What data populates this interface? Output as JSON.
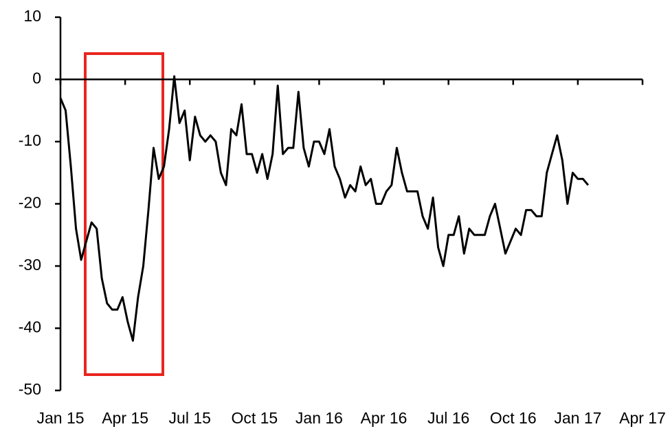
{
  "chart_data": {
    "type": "line",
    "color": "#000000",
    "x": [
      2015,
      2015.02,
      2015.04,
      2015.06,
      2015.08,
      2015.1,
      2015.12,
      2015.14,
      2015.16,
      2015.18,
      2015.2,
      2015.22,
      2015.24,
      2015.26,
      2015.28,
      2015.3,
      2015.32,
      2015.34,
      2015.36,
      2015.38,
      2015.4,
      2015.42,
      2015.44,
      2015.46,
      2015.48,
      2015.5,
      2015.52,
      2015.54,
      2015.56,
      2015.58,
      2015.6,
      2015.62,
      2015.64,
      2015.66,
      2015.68,
      2015.7,
      2015.72,
      2015.74,
      2015.76,
      2015.78,
      2015.8,
      2015.82,
      2015.84,
      2015.86,
      2015.88,
      2015.9,
      2015.92,
      2015.94,
      2015.96,
      2015.98,
      2016,
      2016.02,
      2016.04,
      2016.06,
      2016.08,
      2016.1,
      2016.12,
      2016.14,
      2016.16,
      2016.18,
      2016.2,
      2016.22,
      2016.24,
      2016.26,
      2016.28,
      2016.3,
      2016.32,
      2016.34,
      2016.36,
      2016.38,
      2016.4,
      2016.42,
      2016.44,
      2016.46,
      2016.48,
      2016.5,
      2016.52,
      2016.54,
      2016.56,
      2016.58,
      2016.6,
      2016.62,
      2016.64,
      2016.66,
      2016.68,
      2016.7,
      2016.72,
      2016.74,
      2016.76,
      2016.78,
      2016.8,
      2016.82,
      2016.84,
      2016.86,
      2016.88,
      2016.9,
      2016.92,
      2016.94,
      2016.96,
      2016.98,
      2017,
      2017.02,
      2017.04
    ],
    "values": [
      -3,
      -5,
      -14,
      -24,
      -29,
      -26,
      -23,
      -24,
      -32,
      -36,
      -37,
      -37,
      -35,
      -39,
      -42,
      -35,
      -30,
      -21,
      -11,
      -16,
      -14,
      -8,
      0.5,
      -7,
      -5,
      -13,
      -6,
      -9,
      -10,
      -9,
      -10,
      -15,
      -17,
      -8,
      -9,
      -4,
      -12,
      -12,
      -15,
      -12,
      -16,
      -12,
      -1,
      -12,
      -11,
      -11,
      -2,
      -11,
      -14,
      -10,
      -10,
      -12,
      -8,
      -14,
      -16,
      -19,
      -17,
      -18,
      -14,
      -17,
      -16,
      -20,
      -20,
      -18,
      -17,
      -11,
      -15,
      -18,
      -18,
      -18,
      -22,
      -24,
      -19,
      -27,
      -30,
      -25,
      -25,
      -22,
      -28,
      -24,
      -25,
      -25,
      -25,
      -22,
      -20,
      -24,
      -28,
      -26,
      -24,
      -25,
      -21,
      -21,
      -22,
      -22,
      -15,
      -12,
      -9,
      -13,
      -20,
      -15,
      -16,
      -16,
      -17
    ],
    "xlim": [
      2015,
      2017.25
    ],
    "xticks": [
      {
        "value": 2015,
        "label": "Jan 15"
      },
      {
        "value": 2015.25,
        "label": "Apr 15"
      },
      {
        "value": 2015.5,
        "label": "Jul 15"
      },
      {
        "value": 2015.75,
        "label": "Oct 15"
      },
      {
        "value": 2016,
        "label": "Jan 16"
      },
      {
        "value": 2016.25,
        "label": "Apr 16"
      },
      {
        "value": 2016.5,
        "label": "Jul 16"
      },
      {
        "value": 2016.75,
        "label": "Oct 16"
      },
      {
        "value": 2017,
        "label": "Jan 17"
      },
      {
        "value": 2017.25,
        "label": "Apr 17"
      }
    ],
    "ylim": [
      -50,
      10
    ],
    "yticks": [
      10,
      0,
      -10,
      -20,
      -30,
      -40,
      -50
    ]
  }
}
